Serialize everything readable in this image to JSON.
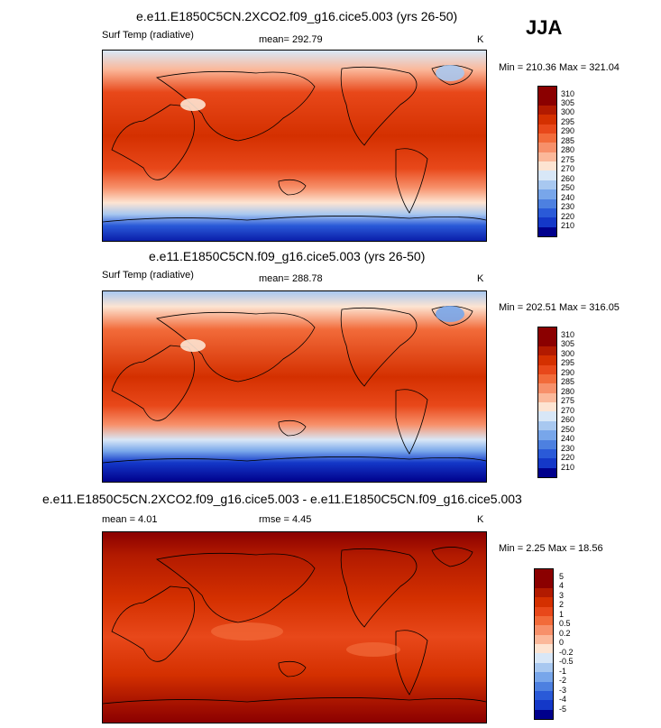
{
  "season_label": "JJA",
  "panels": [
    {
      "title": "e.e11.E1850C5CN.2XCO2.f09_g16.cice5.003 (yrs 26-50)",
      "left_label": "Surf Temp (radiative)",
      "center_label": "mean= 292.79",
      "units": "K",
      "minmax": "Min = 210.36 Max = 321.04",
      "colorbar_ticks": [
        "310",
        "305",
        "300",
        "295",
        "290",
        "285",
        "280",
        "275",
        "270",
        "260",
        "250",
        "240",
        "230",
        "220",
        "210"
      ],
      "colors": [
        "#8b0000",
        "#b21a00",
        "#d43000",
        "#e8481a",
        "#f26b3a",
        "#f7906a",
        "#fbb89a",
        "#fde4d2",
        "#d8e7f7",
        "#a8c8f0",
        "#78a6ea",
        "#4d80e0",
        "#2a5ad8",
        "#1438c8",
        "#0a1eaa",
        "#00008c"
      ]
    },
    {
      "title": "e.e11.E1850C5CN.f09_g16.cice5.003 (yrs 26-50)",
      "left_label": "Surf Temp (radiative)",
      "center_label": "mean= 288.78",
      "units": "K",
      "minmax": "Min = 202.51 Max = 316.05",
      "colorbar_ticks": [
        "310",
        "305",
        "300",
        "295",
        "290",
        "285",
        "280",
        "275",
        "270",
        "260",
        "250",
        "240",
        "230",
        "220",
        "210"
      ],
      "colors": [
        "#8b0000",
        "#b21a00",
        "#d43000",
        "#e8481a",
        "#f26b3a",
        "#f7906a",
        "#fbb89a",
        "#fde4d2",
        "#d8e7f7",
        "#a8c8f0",
        "#78a6ea",
        "#4d80e0",
        "#2a5ad8",
        "#1438c8",
        "#0a1eaa",
        "#00008c"
      ]
    },
    {
      "title": "e.e11.E1850C5CN.2XCO2.f09_g16.cice5.003 - e.e11.E1850C5CN.f09_g16.cice5.003",
      "left_label": "mean =   4.01",
      "center_label": "rmse =   4.45",
      "units": "K",
      "minmax": "Min =   2.25 Max =  18.56",
      "colorbar_ticks": [
        "5",
        "4",
        "3",
        "2",
        "1",
        "0.5",
        "0.2",
        "0",
        "-0.2",
        "-0.5",
        "-1",
        "-2",
        "-3",
        "-4",
        "-5"
      ],
      "colors": [
        "#8b0000",
        "#b21a00",
        "#d43000",
        "#e8481a",
        "#f26b3a",
        "#f7906a",
        "#fbb89a",
        "#fde4d2",
        "#d8e7f7",
        "#a8c8f0",
        "#78a6ea",
        "#4d80e0",
        "#2a5ad8",
        "#1438c8",
        "#0a1eaa",
        "#00008c"
      ]
    }
  ],
  "chart_data": [
    {
      "type": "heatmap",
      "title": "e.e11.E1850C5CN.2XCO2.f09_g16.cice5.003 (yrs 26-50)",
      "variable": "Surf Temp (radiative)",
      "units": "K",
      "mean": 292.79,
      "min": 210.36,
      "max": 321.04,
      "levels": [
        210,
        220,
        230,
        240,
        250,
        260,
        270,
        275,
        280,
        285,
        290,
        295,
        300,
        305,
        310
      ]
    },
    {
      "type": "heatmap",
      "title": "e.e11.E1850C5CN.f09_g16.cice5.003 (yrs 26-50)",
      "variable": "Surf Temp (radiative)",
      "units": "K",
      "mean": 288.78,
      "min": 202.51,
      "max": 316.05,
      "levels": [
        210,
        220,
        230,
        240,
        250,
        260,
        270,
        275,
        280,
        285,
        290,
        295,
        300,
        305,
        310
      ]
    },
    {
      "type": "heatmap",
      "title": "e.e11.E1850C5CN.2XCO2.f09_g16.cice5.003 - e.e11.E1850C5CN.f09_g16.cice5.003",
      "units": "K",
      "mean": 4.01,
      "rmse": 4.45,
      "min": 2.25,
      "max": 18.56,
      "levels": [
        -5,
        -4,
        -3,
        -2,
        -1,
        -0.5,
        -0.2,
        0,
        0.2,
        0.5,
        1,
        2,
        3,
        4,
        5
      ]
    }
  ]
}
